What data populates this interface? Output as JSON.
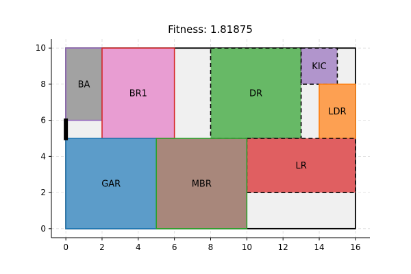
{
  "chart_data": {
    "type": "floorplan",
    "title": "Fitness: 1.81875",
    "xlabel": "",
    "ylabel": "",
    "xlim": [
      -0.8,
      16.8
    ],
    "ylim": [
      -0.5,
      10.5
    ],
    "x_ticks": [
      0,
      2,
      4,
      6,
      8,
      10,
      12,
      14,
      16
    ],
    "y_ticks": [
      0,
      2,
      4,
      6,
      8,
      10
    ],
    "grid": true,
    "boundary": {
      "x": 0,
      "y": 0,
      "w": 16,
      "h": 10,
      "fill": "#f0f0f0",
      "edge": "#000000"
    },
    "entrance": {
      "x": 0,
      "y1": 4.9,
      "y2": 6.1,
      "color": "#000000"
    },
    "rooms": [
      {
        "label": "BA",
        "x": 0,
        "y": 6,
        "w": 2,
        "h": 4,
        "fill": "#a2a2a2",
        "edge": "#9467bd",
        "dashed": false
      },
      {
        "label": "BR1",
        "x": 2,
        "y": 5,
        "w": 4,
        "h": 5,
        "fill": "#e89dd2",
        "edge": "#d62728",
        "dashed": false
      },
      {
        "label": "DR",
        "x": 8,
        "y": 5,
        "w": 5,
        "h": 5,
        "fill": "#67b966",
        "edge": "#000000",
        "dashed": true
      },
      {
        "label": "KIC",
        "x": 13,
        "y": 8,
        "w": 2,
        "h": 2,
        "fill": "#b195cc",
        "edge": "#000000",
        "dashed": true
      },
      {
        "label": "LDR",
        "x": 14,
        "y": 5,
        "w": 2,
        "h": 3,
        "fill": "#fda052",
        "edge": "#ff7f0e",
        "dashed": false
      },
      {
        "label": "LR",
        "x": 10,
        "y": 2,
        "w": 6,
        "h": 3,
        "fill": "#e05f61",
        "edge": "#000000",
        "dashed": true
      },
      {
        "label": "GAR",
        "x": 0,
        "y": 0,
        "w": 5,
        "h": 5,
        "fill": "#5c9cc9",
        "edge": "#1f77b4",
        "dashed": false
      },
      {
        "label": "MBR",
        "x": 5,
        "y": 0,
        "w": 5,
        "h": 5,
        "fill": "#a8877b",
        "edge": "#2ca02c",
        "dashed": false
      }
    ]
  }
}
